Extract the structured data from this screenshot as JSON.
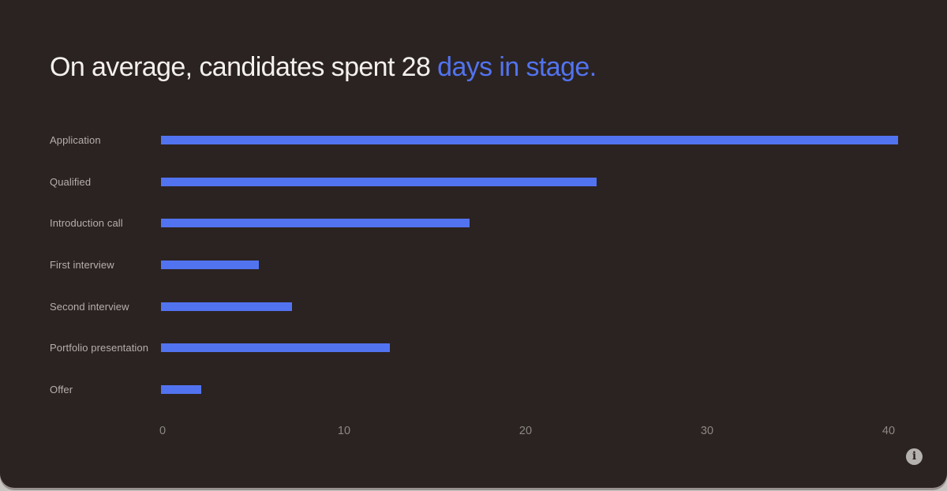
{
  "slide": {
    "background": "#2b2321",
    "canvas_background": "#c9c5c3"
  },
  "title": {
    "text_main": "On average, candidates spent 28 ",
    "text_accent": "days in stage.",
    "text_color": "#f3f0ee",
    "accent_color": "#5273f0"
  },
  "chart_data": {
    "type": "bar",
    "orientation": "horizontal",
    "title": "On average, candidates spent 28 days in stage.",
    "categories": [
      "Application",
      "Qualified",
      "Introduction call",
      "First interview",
      "Second interview",
      "Portfolio presentation",
      "Offer"
    ],
    "values": [
      40.6,
      24,
      17,
      5.4,
      7.2,
      12.6,
      2.2
    ],
    "xlabel": "",
    "ylabel": "",
    "xlim": [
      0,
      40
    ],
    "xticks": [
      "0",
      "10",
      "20",
      "30",
      "40"
    ],
    "xtick_values": [
      0,
      10,
      20,
      30,
      40
    ],
    "grid": false,
    "legend": false,
    "bar_color": "#5273f0",
    "label_color": "#b4afac",
    "tick_color": "#8d8884"
  },
  "footer": {
    "info_glyph": "i"
  }
}
